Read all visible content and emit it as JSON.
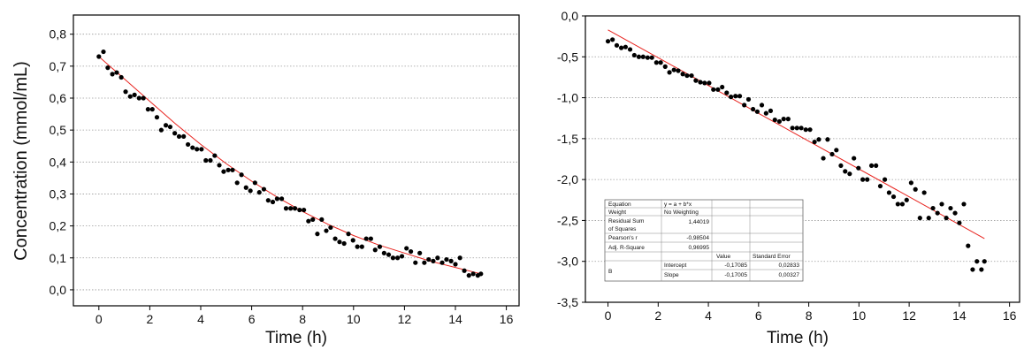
{
  "chart_data": [
    {
      "type": "scatter",
      "title": "",
      "xlabel": "Time (h)",
      "ylabel": "Concentration (mmol/mL)",
      "xlim": [
        -1,
        16.5
      ],
      "ylim": [
        -0.05,
        0.86
      ],
      "xticks": [
        "0",
        "2",
        "4",
        "6",
        "8",
        "10",
        "12",
        "14",
        "16"
      ],
      "yticks": [
        "0,0",
        "0,1",
        "0,2",
        "0,3",
        "0,4",
        "0,5",
        "0,6",
        "0,7",
        "0,8"
      ],
      "grid": "horizontal dotted",
      "colors": {
        "points": "#000000",
        "fit": "#e8231e"
      },
      "series": [
        {
          "x": [
            0,
            0.18,
            0.35,
            0.53,
            0.7,
            0.88,
            1.05,
            1.23,
            1.4,
            1.58,
            1.75,
            1.93,
            2.1,
            2.28,
            2.45,
            2.63,
            2.8,
            2.98,
            3.15,
            3.33,
            3.5,
            3.68,
            3.85,
            4.03,
            4.2,
            4.38,
            4.55,
            4.73,
            4.9,
            5.08,
            5.25,
            5.43,
            5.6,
            5.78,
            5.95,
            6.13,
            6.3,
            6.48,
            6.65,
            6.83,
            7,
            7.18,
            7.35,
            7.53,
            7.7,
            7.88,
            8.05,
            8.23,
            8.4,
            8.58,
            8.75,
            8.93,
            9.1,
            9.28,
            9.45,
            9.63,
            9.8,
            9.98,
            10.15,
            10.33,
            10.5,
            10.68,
            10.85,
            11.03,
            11.2,
            11.38,
            11.55,
            11.73,
            11.9,
            12.08,
            12.25,
            12.43,
            12.6,
            12.78,
            12.95,
            13.13,
            13.3,
            13.48,
            13.65,
            13.83,
            14,
            14.18,
            14.35,
            14.53,
            14.7,
            14.88,
            15
          ],
          "y": [
            0.73,
            0.745,
            0.695,
            0.675,
            0.68,
            0.665,
            0.62,
            0.605,
            0.61,
            0.6,
            0.6,
            0.565,
            0.565,
            0.54,
            0.5,
            0.515,
            0.51,
            0.49,
            0.48,
            0.48,
            0.455,
            0.445,
            0.44,
            0.44,
            0.405,
            0.405,
            0.42,
            0.39,
            0.37,
            0.375,
            0.375,
            0.335,
            0.36,
            0.32,
            0.31,
            0.335,
            0.305,
            0.315,
            0.28,
            0.275,
            0.285,
            0.285,
            0.255,
            0.255,
            0.255,
            0.25,
            0.25,
            0.215,
            0.22,
            0.175,
            0.22,
            0.185,
            0.195,
            0.16,
            0.15,
            0.145,
            0.175,
            0.155,
            0.135,
            0.135,
            0.16,
            0.16,
            0.125,
            0.135,
            0.115,
            0.11,
            0.1,
            0.1,
            0.105,
            0.13,
            0.12,
            0.085,
            0.115,
            0.085,
            0.095,
            0.09,
            0.1,
            0.085,
            0.095,
            0.09,
            0.08,
            0.1,
            0.06,
            0.045,
            0.05,
            0.045,
            0.05
          ]
        },
        {
          "type": "line",
          "x": [
            0,
            1,
            2,
            3,
            4,
            5,
            6,
            7,
            8,
            9,
            10,
            11,
            12,
            13,
            14,
            15
          ],
          "y": [
            0.73,
            0.66,
            0.59,
            0.52,
            0.455,
            0.395,
            0.34,
            0.29,
            0.245,
            0.205,
            0.17,
            0.14,
            0.115,
            0.09,
            0.07,
            0.05
          ]
        }
      ]
    },
    {
      "type": "scatter",
      "title": "",
      "xlabel": "Time (h)",
      "ylabel": "",
      "xlim": [
        -0.9,
        16.4
      ],
      "ylim": [
        -3.5,
        0.0
      ],
      "xticks": [
        "0",
        "2",
        "4",
        "6",
        "8",
        "10",
        "12",
        "14",
        "16"
      ],
      "yticks": [
        "0,0",
        "-0,5",
        "-1,0",
        "-1,5",
        "-2,0",
        "-2,5",
        "-3,0",
        "-3,5"
      ],
      "grid": "horizontal dotted",
      "colors": {
        "points": "#000000",
        "fit": "#e8231e"
      },
      "series": [
        {
          "x": [
            0,
            0.18,
            0.35,
            0.53,
            0.7,
            0.88,
            1.05,
            1.23,
            1.4,
            1.58,
            1.75,
            1.93,
            2.1,
            2.28,
            2.45,
            2.63,
            2.8,
            2.98,
            3.15,
            3.33,
            3.5,
            3.68,
            3.85,
            4.03,
            4.2,
            4.38,
            4.55,
            4.73,
            4.9,
            5.08,
            5.25,
            5.43,
            5.6,
            5.78,
            5.95,
            6.13,
            6.3,
            6.48,
            6.65,
            6.83,
            7,
            7.18,
            7.35,
            7.53,
            7.7,
            7.88,
            8.05,
            8.23,
            8.4,
            8.58,
            8.75,
            8.93,
            9.1,
            9.28,
            9.45,
            9.63,
            9.8,
            9.98,
            10.15,
            10.33,
            10.5,
            10.68,
            10.85,
            11.03,
            11.2,
            11.38,
            11.55,
            11.73,
            11.9,
            12.08,
            12.25,
            12.43,
            12.6,
            12.78,
            12.95,
            13.13,
            13.3,
            13.48,
            13.65,
            13.83,
            14,
            14.18,
            14.35,
            14.53,
            14.7,
            14.88,
            15
          ],
          "y": [
            -0.31,
            -0.29,
            -0.36,
            -0.39,
            -0.38,
            -0.41,
            -0.48,
            -0.5,
            -0.5,
            -0.51,
            -0.51,
            -0.57,
            -0.57,
            -0.62,
            -0.69,
            -0.66,
            -0.67,
            -0.71,
            -0.73,
            -0.73,
            -0.79,
            -0.81,
            -0.82,
            -0.82,
            -0.9,
            -0.9,
            -0.87,
            -0.94,
            -0.99,
            -0.98,
            -0.98,
            -1.09,
            -1.02,
            -1.14,
            -1.17,
            -1.09,
            -1.19,
            -1.16,
            -1.27,
            -1.29,
            -1.26,
            -1.26,
            -1.37,
            -1.37,
            -1.37,
            -1.39,
            -1.39,
            -1.54,
            -1.51,
            -1.74,
            -1.51,
            -1.69,
            -1.64,
            -1.83,
            -1.9,
            -1.93,
            -1.74,
            -1.86,
            -2.0,
            -2.0,
            -1.83,
            -1.83,
            -2.08,
            -2.0,
            -2.16,
            -2.21,
            -2.3,
            -2.3,
            -2.25,
            -2.04,
            -2.12,
            -2.47,
            -2.16,
            -2.47,
            -2.35,
            -2.41,
            -2.3,
            -2.47,
            -2.35,
            -2.41,
            -2.53,
            -2.3,
            -2.81,
            -3.1,
            -3.0,
            -3.1,
            -3.0
          ]
        },
        {
          "type": "line",
          "x": [
            0,
            15
          ],
          "y": [
            -0.17085,
            -2.7216
          ]
        }
      ],
      "fit_table": {
        "equation_label": "Equation",
        "equation": "y = a + b*x",
        "weight_label": "Weight",
        "weight": "No Weighting",
        "rss_label_1": "Residual Sum",
        "rss_label_2": "of Squares",
        "rss": "1,44019",
        "pearson_label": "Pearson's r",
        "pearson": "-0,98504",
        "adjr2_label": "Adj. R-Square",
        "adjr2": "0,96995",
        "value_header": "Value",
        "stderr_header": "Standard Error",
        "group_label": "B",
        "intercept_label": "Intercept",
        "intercept_value": "-0,17085",
        "intercept_err": "0,02833",
        "slope_label": "Slope",
        "slope_value": "-0,17005",
        "slope_err": "0,00327"
      }
    }
  ]
}
